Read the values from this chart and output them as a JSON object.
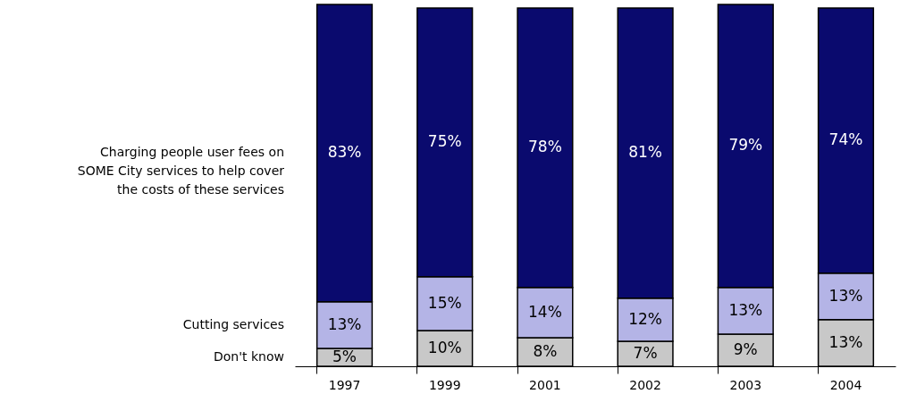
{
  "chart_data": {
    "type": "bar",
    "stacked": true,
    "categories": [
      "1997",
      "1999",
      "2001",
      "2002",
      "2003",
      "2004"
    ],
    "series": [
      {
        "name": "Don't know",
        "color": "#c8c8c8",
        "values": [
          5,
          10,
          8,
          7,
          9,
          13
        ],
        "value_labels": [
          "5%",
          "10%",
          "8%",
          "7%",
          "9%",
          "13%"
        ]
      },
      {
        "name": "Cutting services",
        "color": "#b4b4e6",
        "values": [
          13,
          15,
          14,
          12,
          13,
          13
        ],
        "value_labels": [
          "13%",
          "15%",
          "14%",
          "12%",
          "13%",
          "13%"
        ]
      },
      {
        "name": "Charging people user fees on\nSOME City services to help cover\nthe costs of these services",
        "color": "#0a0a6e",
        "values": [
          83,
          75,
          78,
          81,
          79,
          74
        ],
        "value_labels": [
          "83%",
          "75%",
          "78%",
          "81%",
          "79%",
          "74%"
        ]
      }
    ]
  }
}
